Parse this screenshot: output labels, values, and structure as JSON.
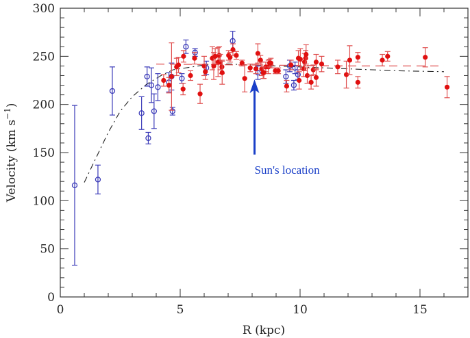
{
  "chart_data": {
    "type": "scatter",
    "xlabel": "R (kpc)",
    "ylabel": "Velocity (km s",
    "ylabel_sup": "−1",
    "ylabel_close": ")",
    "xlim": [
      0,
      17
    ],
    "ylim": [
      0,
      300
    ],
    "xticks": [
      "0",
      "5",
      "10",
      "15"
    ],
    "yticks": [
      "0",
      "50",
      "100",
      "150",
      "200",
      "250",
      "300"
    ],
    "grid": false,
    "colors": {
      "open_points": "#3a3ab8",
      "filled_points": "#e01010",
      "red_errorbars": "#e05050",
      "model_curve": "#222222",
      "red_dashed": "#e05050",
      "annotation": "#1a3fc8"
    },
    "series": [
      {
        "marker": "open-circle",
        "points": [
          [
            0.6,
            116,
            83
          ],
          [
            1.57,
            122,
            15
          ],
          [
            2.17,
            214,
            25
          ],
          [
            3.39,
            191,
            17
          ],
          [
            3.62,
            229,
            10
          ],
          [
            3.67,
            165,
            6
          ],
          [
            3.8,
            220,
            18
          ],
          [
            3.91,
            193,
            18
          ],
          [
            4.07,
            218,
            14
          ],
          [
            4.53,
            223,
            10
          ],
          [
            4.64,
            229,
            14
          ],
          [
            4.68,
            193,
            4
          ],
          [
            5.07,
            227,
            5
          ],
          [
            5.24,
            260,
            7
          ],
          [
            5.62,
            254,
            4
          ],
          [
            6.09,
            238,
            7
          ],
          [
            7.19,
            266,
            10
          ],
          [
            8.24,
            233,
            7
          ],
          [
            9.41,
            229,
            7
          ],
          [
            9.57,
            240,
            6
          ],
          [
            9.74,
            220,
            5
          ],
          [
            9.79,
            238,
            6
          ],
          [
            9.91,
            231,
            5
          ]
        ]
      },
      {
        "marker": "filled-circle",
        "points": [
          [
            4.31,
            225,
            6
          ],
          [
            4.53,
            220,
            8
          ],
          [
            4.64,
            229,
            35
          ],
          [
            4.85,
            239,
            9
          ],
          [
            4.93,
            241,
            8
          ],
          [
            5.12,
            216,
            6
          ],
          [
            5.14,
            250,
            6
          ],
          [
            5.43,
            230,
            5
          ],
          [
            5.6,
            248,
            6
          ],
          [
            5.83,
            211,
            10
          ],
          [
            6.0,
            240,
            10
          ],
          [
            6.05,
            234,
            8
          ],
          [
            6.34,
            248,
            12
          ],
          [
            6.4,
            240,
            14
          ],
          [
            6.46,
            250,
            8
          ],
          [
            6.58,
            244,
            15
          ],
          [
            6.63,
            251,
            9
          ],
          [
            6.67,
            244,
            8
          ],
          [
            6.74,
            239,
            7
          ],
          [
            6.75,
            233,
            12
          ],
          [
            7.02,
            251,
            5
          ],
          [
            7.08,
            249,
            5
          ],
          [
            7.2,
            257,
            6
          ],
          [
            7.34,
            251,
            4
          ],
          [
            7.58,
            243,
            3
          ],
          [
            7.69,
            227,
            14
          ],
          [
            7.92,
            238,
            4
          ],
          [
            8.16,
            237,
            5
          ],
          [
            8.24,
            253,
            10
          ],
          [
            8.35,
            246,
            5
          ],
          [
            8.4,
            237,
            7
          ],
          [
            8.46,
            233,
            6
          ],
          [
            8.57,
            239,
            5
          ],
          [
            8.49,
            233,
            6
          ],
          [
            8.68,
            239,
            7
          ],
          [
            8.73,
            243,
            4
          ],
          [
            8.78,
            243,
            5
          ],
          [
            8.97,
            235,
            3
          ],
          [
            9.09,
            235,
            3
          ],
          [
            9.44,
            219,
            6
          ],
          [
            9.62,
            241,
            5
          ],
          [
            9.93,
            248,
            8
          ],
          [
            9.96,
            225,
            9
          ],
          [
            10.01,
            247,
            11
          ],
          [
            10.15,
            237,
            8
          ],
          [
            10.19,
            244,
            9
          ],
          [
            10.23,
            248,
            8
          ],
          [
            10.25,
            252,
            10
          ],
          [
            10.3,
            230,
            8
          ],
          [
            10.46,
            223,
            7
          ],
          [
            10.55,
            236,
            5
          ],
          [
            10.67,
            244,
            8
          ],
          [
            10.67,
            228,
            9
          ],
          [
            10.9,
            242,
            8
          ],
          [
            11.57,
            239,
            7
          ],
          [
            11.93,
            231,
            14
          ],
          [
            12.07,
            246,
            15
          ],
          [
            12.41,
            249,
            5
          ],
          [
            12.41,
            223,
            6
          ],
          [
            13.43,
            246,
            6
          ],
          [
            13.65,
            250,
            5
          ],
          [
            15.22,
            249,
            10
          ],
          [
            16.13,
            218,
            11
          ]
        ]
      }
    ],
    "curves": [
      {
        "style": "dash-dot",
        "points": [
          [
            1.0,
            119
          ],
          [
            1.5,
            145
          ],
          [
            2.0,
            171
          ],
          [
            2.5,
            193
          ],
          [
            3.0,
            208
          ],
          [
            3.6,
            221
          ],
          [
            4.2,
            230
          ],
          [
            4.7,
            236
          ],
          [
            5.5,
            239
          ],
          [
            6.0,
            241
          ],
          [
            7.0,
            242
          ],
          [
            8.0,
            241
          ],
          [
            10.0,
            239
          ],
          [
            12.0,
            237
          ],
          [
            14.0,
            235
          ],
          [
            16.0,
            234
          ]
        ]
      },
      {
        "style": "dashed",
        "points": [
          [
            4.0,
            242
          ],
          [
            8.0,
            241
          ],
          [
            12.0,
            240
          ],
          [
            16.0,
            240
          ]
        ]
      }
    ],
    "annotation": {
      "text": "Sun's location",
      "arrow_x": 8.1,
      "arrow_from": 148,
      "arrow_to": 226
    }
  }
}
